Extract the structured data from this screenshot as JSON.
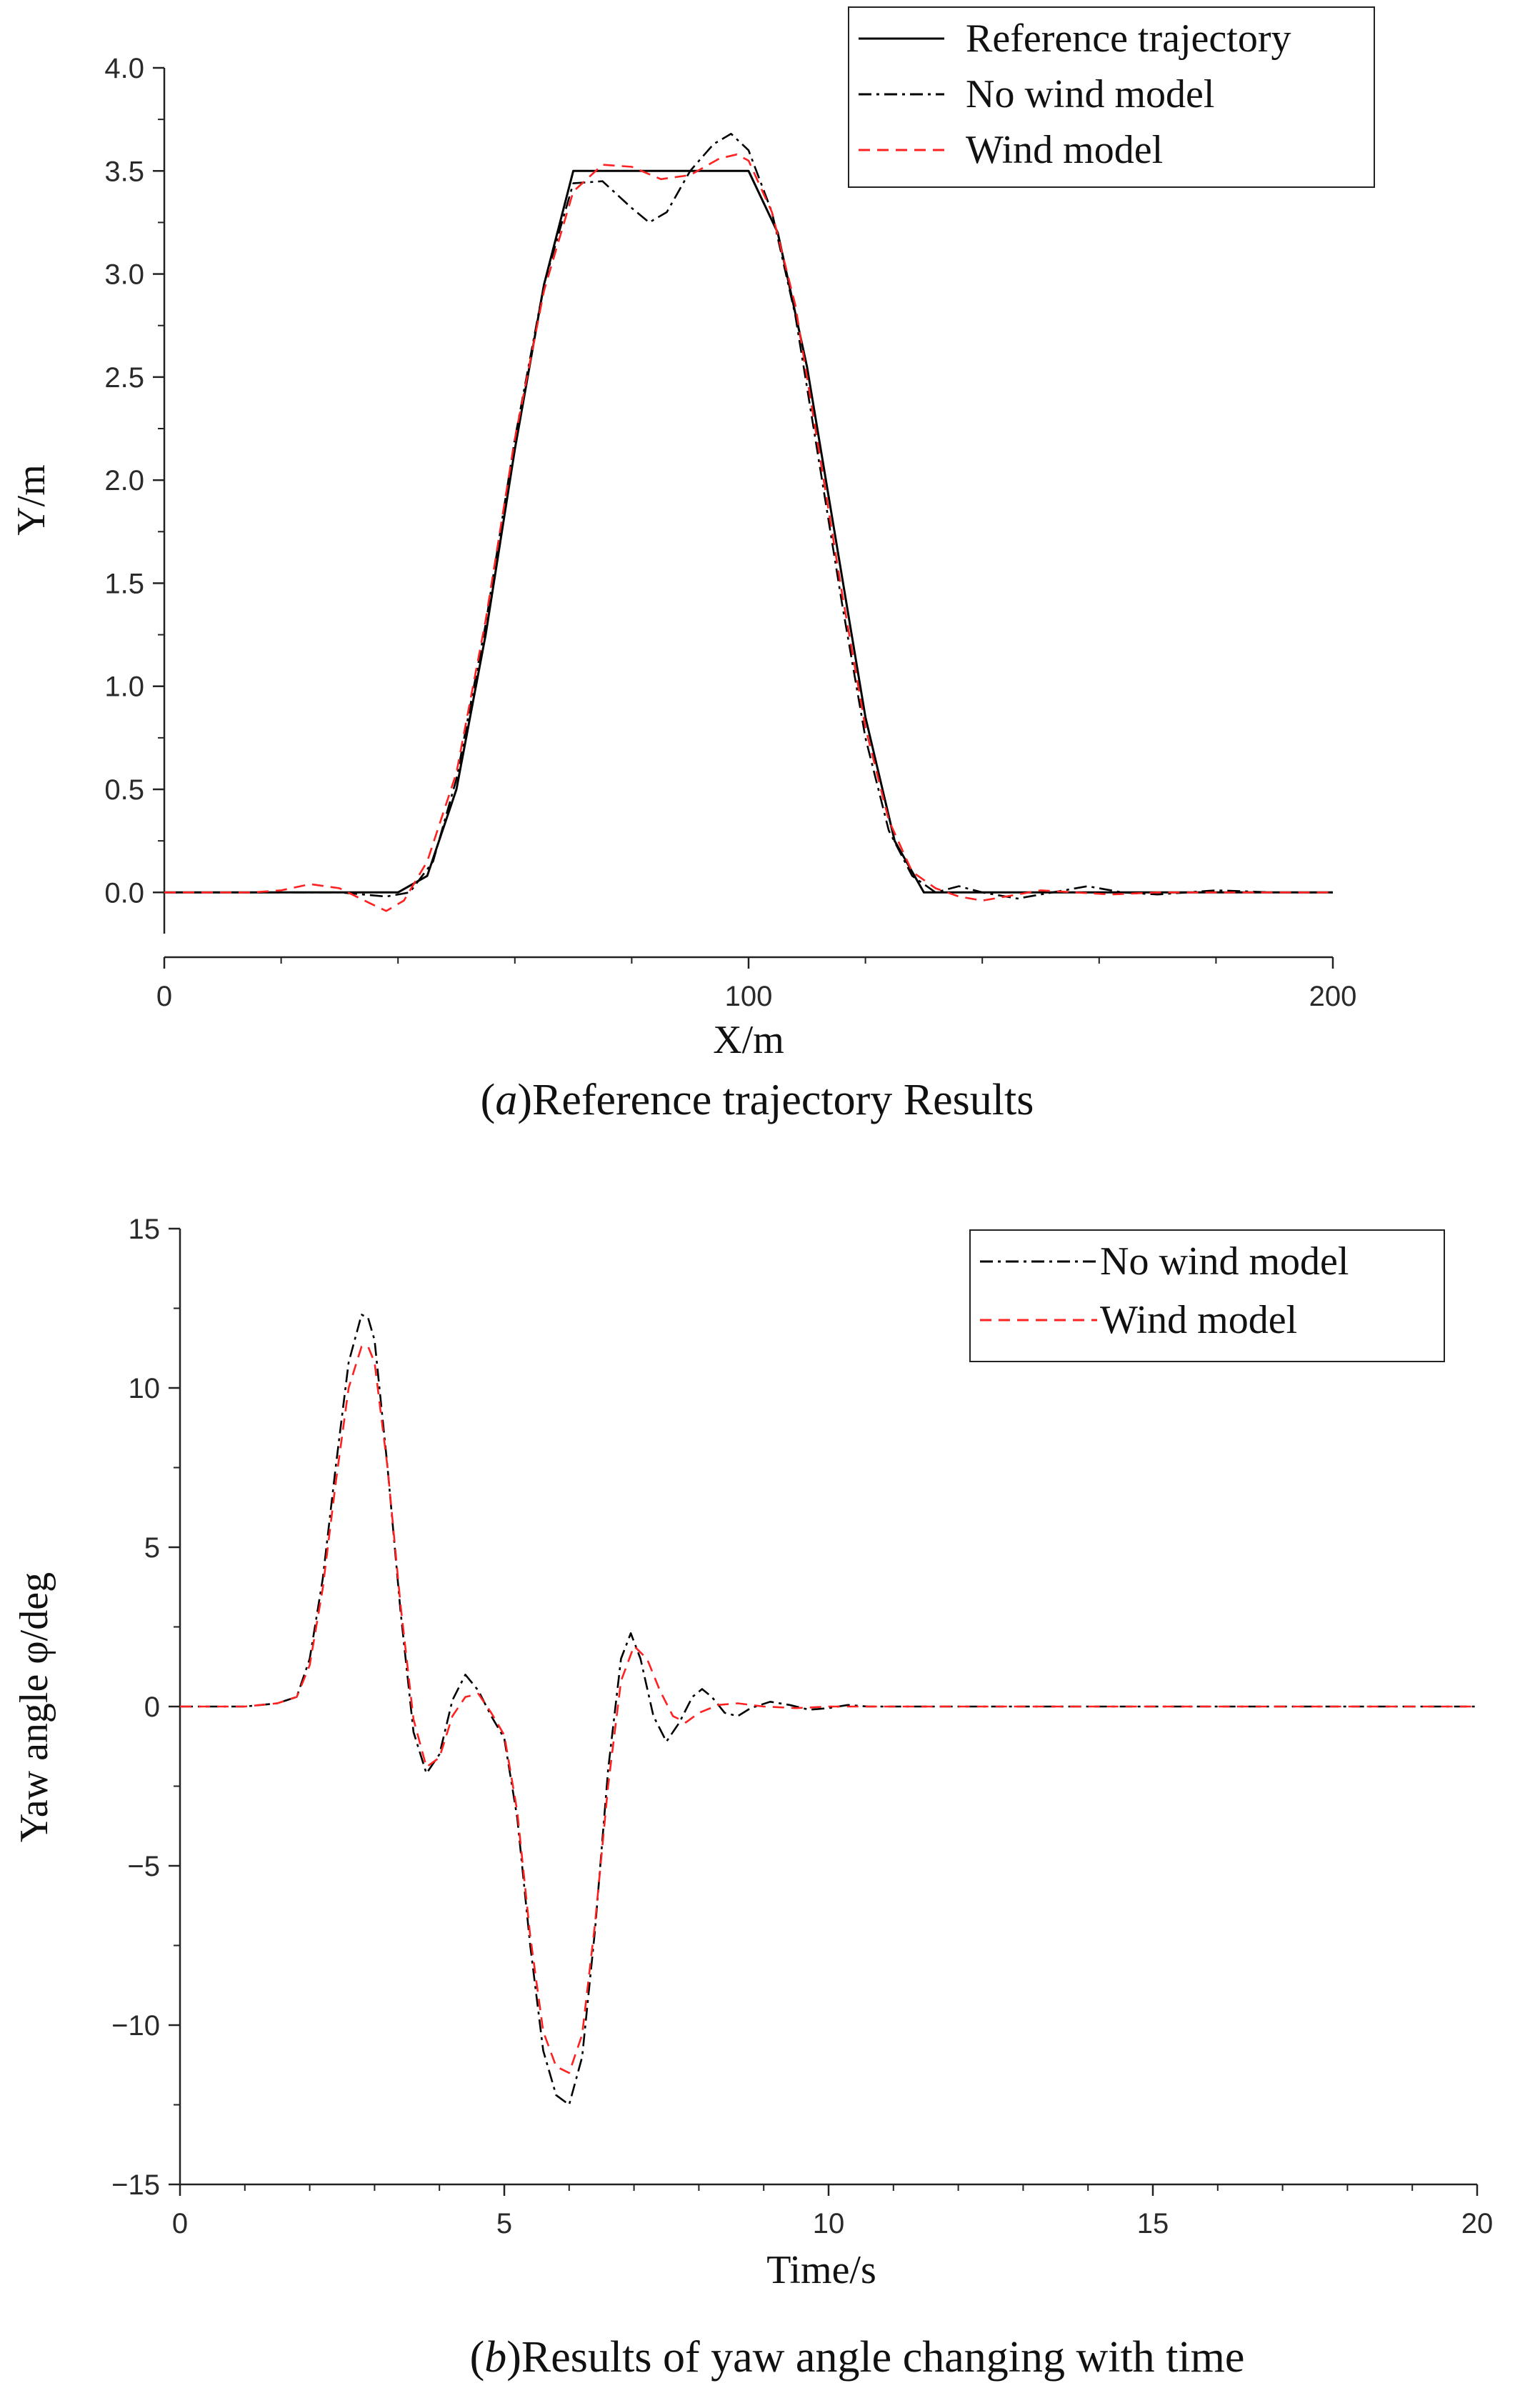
{
  "charts": [
    {
      "type": "line",
      "title": "",
      "xlabel": "X/m",
      "ylabel": "Y/m",
      "xlim": [
        0,
        200
      ],
      "ylim": [
        -0.2,
        4.0
      ],
      "xticks": [
        0,
        100,
        200
      ],
      "xtick_labels": [
        "0",
        "100",
        "200"
      ],
      "yticks": [
        0.0,
        0.5,
        1.0,
        1.5,
        2.0,
        2.5,
        3.0,
        3.5,
        4.0
      ],
      "ytick_labels": [
        "0.0",
        "0.5",
        "1.0",
        "1.5",
        "2.0",
        "2.5",
        "3.0",
        "3.5",
        "4.0"
      ],
      "legend_position": "top-right",
      "caption_letter": "a",
      "caption_text": ")Reference trajectory Results",
      "series": [
        {
          "name": "Reference trajectory",
          "color": "#000000",
          "style": "solid",
          "x": [
            0,
            40,
            45,
            50,
            55,
            60,
            65,
            70,
            75,
            80,
            85,
            90,
            95,
            100,
            105,
            110,
            115,
            120,
            125,
            130,
            140,
            150,
            160,
            170,
            180,
            190,
            200
          ],
          "y": [
            0,
            0,
            0.08,
            0.5,
            1.25,
            2.15,
            2.95,
            3.5,
            3.5,
            3.5,
            3.5,
            3.5,
            3.5,
            3.5,
            3.2,
            2.55,
            1.7,
            0.85,
            0.25,
            0,
            0,
            0,
            0,
            0,
            0,
            0,
            0
          ]
        },
        {
          "name": "No wind model",
          "color": "#000000",
          "style": "dashdot",
          "x": [
            0,
            20,
            30,
            38,
            42,
            46,
            50,
            55,
            60,
            65,
            70,
            75,
            80,
            83,
            86,
            90,
            94,
            97,
            100,
            104,
            108,
            112,
            116,
            120,
            124,
            128,
            132,
            136,
            140,
            146,
            152,
            158,
            164,
            170,
            180,
            190,
            200
          ],
          "y": [
            0,
            0,
            0,
            -0.02,
            0.0,
            0.15,
            0.55,
            1.3,
            2.2,
            2.95,
            3.44,
            3.45,
            3.32,
            3.25,
            3.3,
            3.5,
            3.63,
            3.68,
            3.6,
            3.3,
            2.8,
            2.1,
            1.4,
            0.75,
            0.3,
            0.08,
            0.0,
            0.03,
            0.0,
            -0.03,
            0.0,
            0.03,
            0.0,
            -0.01,
            0.01,
            0,
            0
          ]
        },
        {
          "name": "Wind model",
          "color": "#ff2020",
          "style": "dashed",
          "x": [
            0,
            15,
            20,
            25,
            30,
            35,
            38,
            41,
            45,
            50,
            55,
            60,
            65,
            70,
            75,
            80,
            85,
            90,
            95,
            98,
            100,
            104,
            108,
            112,
            116,
            120,
            124,
            128,
            132,
            136,
            140,
            144,
            150,
            156,
            162,
            170,
            180,
            190,
            200
          ],
          "y": [
            0,
            0,
            0.01,
            0.04,
            0.02,
            -0.05,
            -0.09,
            -0.04,
            0.15,
            0.58,
            1.32,
            2.2,
            2.92,
            3.4,
            3.53,
            3.52,
            3.46,
            3.48,
            3.56,
            3.58,
            3.55,
            3.3,
            2.85,
            2.15,
            1.45,
            0.8,
            0.35,
            0.1,
            0.02,
            -0.02,
            -0.04,
            -0.02,
            0.01,
            0.0,
            -0.01,
            0.0,
            0,
            0,
            0
          ]
        }
      ]
    },
    {
      "type": "line",
      "title": "",
      "xlabel": "Time/s",
      "ylabel": "Yaw angle φ/deg",
      "xlim": [
        0,
        20
      ],
      "ylim": [
        -15,
        15
      ],
      "xticks": [
        0,
        5,
        10,
        15,
        20
      ],
      "xtick_labels": [
        "0",
        "5",
        "10",
        "15",
        "20"
      ],
      "yticks": [
        -15,
        -10,
        -5,
        0,
        5,
        10,
        15
      ],
      "ytick_labels": [
        "−15",
        "−10",
        "−5",
        "0",
        "5",
        "10",
        "15"
      ],
      "legend_position": "top-right",
      "caption_letter": "b",
      "caption_text": ")Results of yaw angle changing with time",
      "series": [
        {
          "name": "No wind model",
          "color": "#000000",
          "style": "dashdot",
          "x": [
            0,
            0.5,
            1.0,
            1.5,
            1.8,
            2.0,
            2.2,
            2.4,
            2.6,
            2.8,
            2.9,
            3.0,
            3.2,
            3.4,
            3.6,
            3.8,
            4.0,
            4.2,
            4.4,
            4.6,
            4.8,
            5.0,
            5.2,
            5.4,
            5.6,
            5.8,
            6.0,
            6.2,
            6.4,
            6.6,
            6.8,
            6.95,
            7.1,
            7.3,
            7.5,
            7.7,
            7.9,
            8.05,
            8.2,
            8.4,
            8.6,
            8.8,
            9.1,
            9.4,
            9.7,
            10.0,
            10.3,
            10.6,
            11.0,
            12,
            14,
            16,
            18,
            20
          ],
          "y": [
            0,
            0,
            0,
            0.1,
            0.3,
            1.5,
            4.0,
            7.5,
            10.8,
            12.3,
            12.2,
            11.5,
            7.5,
            3.0,
            -0.8,
            -2.1,
            -1.5,
            0.2,
            1.0,
            0.5,
            -0.3,
            -1.0,
            -3.5,
            -7.5,
            -10.8,
            -12.2,
            -12.5,
            -11.0,
            -7.0,
            -2.0,
            1.5,
            2.3,
            1.5,
            -0.3,
            -1.1,
            -0.5,
            0.3,
            0.55,
            0.3,
            -0.2,
            -0.3,
            -0.05,
            0.15,
            0.05,
            -0.1,
            -0.05,
            0.05,
            0.0,
            0.0,
            0,
            0,
            0,
            0,
            0
          ]
        },
        {
          "name": "Wind model",
          "color": "#ff2020",
          "style": "dashed",
          "x": [
            0,
            0.5,
            1.0,
            1.5,
            1.8,
            2.0,
            2.2,
            2.4,
            2.6,
            2.8,
            2.9,
            3.0,
            3.2,
            3.4,
            3.6,
            3.8,
            4.0,
            4.2,
            4.4,
            4.6,
            4.8,
            5.0,
            5.2,
            5.4,
            5.6,
            5.8,
            6.0,
            6.2,
            6.4,
            6.6,
            6.8,
            7.0,
            7.2,
            7.4,
            7.6,
            7.8,
            8.0,
            8.3,
            8.6,
            9.0,
            9.5,
            10.0,
            11.0,
            12,
            14,
            16,
            18,
            20
          ],
          "y": [
            0,
            0,
            0,
            0.1,
            0.3,
            1.3,
            3.7,
            7.0,
            10.0,
            11.3,
            11.3,
            10.8,
            7.5,
            3.2,
            -0.4,
            -1.9,
            -1.6,
            -0.3,
            0.3,
            0.4,
            -0.2,
            -0.9,
            -3.3,
            -7.2,
            -10.2,
            -11.3,
            -11.5,
            -10.3,
            -6.8,
            -2.5,
            0.8,
            1.9,
            1.5,
            0.5,
            -0.3,
            -0.5,
            -0.2,
            0.05,
            0.1,
            0.0,
            -0.05,
            0.0,
            0.0,
            0,
            0,
            0,
            0,
            0
          ]
        }
      ]
    }
  ]
}
